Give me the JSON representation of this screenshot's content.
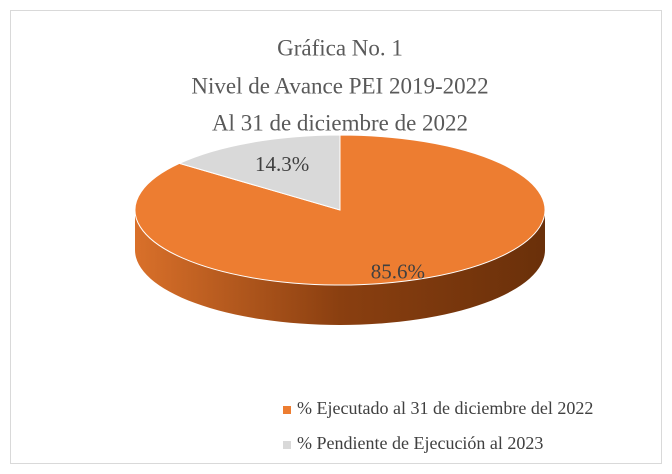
{
  "chart_data": {
    "type": "pie3d",
    "title": [
      "Gráfica No. 1",
      "Nivel de Avance PEI 2019-2022",
      "Al 31 de diciembre de 2022"
    ],
    "categories": [
      "% Ejecutado al 31 de diciembre del 2022",
      "% Pendiente de Ejecución al 2023"
    ],
    "values": [
      85.6,
      14.3
    ],
    "value_labels": [
      "85.6%",
      "14.3%"
    ],
    "colors": [
      "#ed7d31",
      "#d9d9d9"
    ],
    "legend": "bottom"
  }
}
